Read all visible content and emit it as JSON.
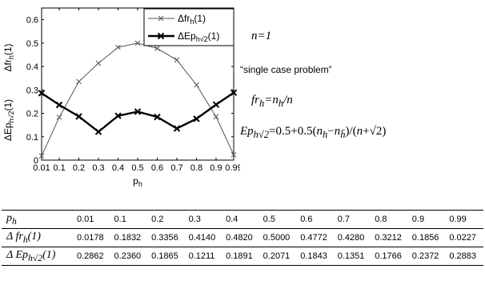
{
  "chart_data": {
    "type": "line",
    "x": [
      0.01,
      0.1,
      0.2,
      0.3,
      0.4,
      0.5,
      0.6,
      0.7,
      0.8,
      0.9,
      0.99
    ],
    "x_tick_labels": [
      "0.01",
      "0.1",
      "0.2",
      "0.3",
      "0.4",
      "0.5",
      "0.6",
      "0.7",
      "0.8",
      "0.9",
      "0.99"
    ],
    "y_ticks": [
      "0",
      "0.1",
      "0.2",
      "0.3",
      "0.4",
      "0.5",
      "0.6"
    ],
    "xlim": [
      0.01,
      0.99
    ],
    "ylim": [
      0,
      0.65
    ],
    "xlabel": "p",
    "xlabel_sub": "h",
    "ylabel_top": "Δfr",
    "ylabel_top_sub": "h",
    "ylabel_top_suffix": "(1)",
    "ylabel_bottom": "ΔEp",
    "ylabel_bottom_sub": "h√2",
    "ylabel_bottom_suffix": "(1)",
    "legend_position": "top-right",
    "series": [
      {
        "name": "Δfr",
        "name_sub": "h",
        "name_suffix": "(1)",
        "style": "thin",
        "marker": "x",
        "color": "#555555",
        "values": [
          0.0178,
          0.1832,
          0.3356,
          0.414,
          0.482,
          0.5,
          0.4772,
          0.428,
          0.3212,
          0.1856,
          0.0227
        ]
      },
      {
        "name": "ΔEp",
        "name_sub": "h√2",
        "name_suffix": "(1)",
        "style": "bold",
        "marker": "x",
        "color": "#000000",
        "values": [
          0.2862,
          0.236,
          0.1865,
          0.1211,
          0.1891,
          0.2071,
          0.1843,
          0.1351,
          0.1766,
          0.2372,
          0.2883
        ]
      }
    ]
  },
  "annotations": {
    "n_label": "n=1",
    "case_label": "“single case problem”",
    "formula_fr": "fr",
    "formula_fr_sub": "h",
    "formula_fr_rest": "=n",
    "formula_fr_sub2": "h",
    "formula_fr_end": "/n",
    "formula_ep": "Ep",
    "formula_ep_sub": "h√2",
    "formula_ep_rest_a": "=",
    "formula_ep_num1": "0.5+0.5(",
    "formula_ep_n1": "n",
    "formula_ep_n1_sub": "h",
    "formula_ep_minus": "−",
    "formula_ep_n2": "n",
    "formula_ep_n2_sub": "h̄",
    "formula_ep_close": ")/(",
    "formula_ep_n3": "n",
    "formula_ep_end": "+√2)"
  },
  "table": {
    "header_label": "p",
    "header_label_sub": "h",
    "header": [
      "0.01",
      "0.1",
      "0.2",
      "0.3",
      "0.4",
      "0.5",
      "0.6",
      "0.7",
      "0.8",
      "0.9",
      "0.99"
    ],
    "row1_label": "Δ fr",
    "row1_label_sub": "h",
    "row1_label_suffix": "(1)",
    "row1": [
      "0.0178",
      "0.1832",
      "0.3356",
      "0.4140",
      "0.4820",
      "0.5000",
      "0.4772",
      "0.4280",
      "0.3212",
      "0.1856",
      "0.0227"
    ],
    "row2_label": "Δ Ep",
    "row2_label_sub": "h√2",
    "row2_label_suffix": "(1)",
    "row2": [
      "0.2862",
      "0.2360",
      "0.1865",
      "0.1211",
      "0.1891",
      "0.2071",
      "0.1843",
      "0.1351",
      "0.1766",
      "0.2372",
      "0.2883"
    ]
  }
}
